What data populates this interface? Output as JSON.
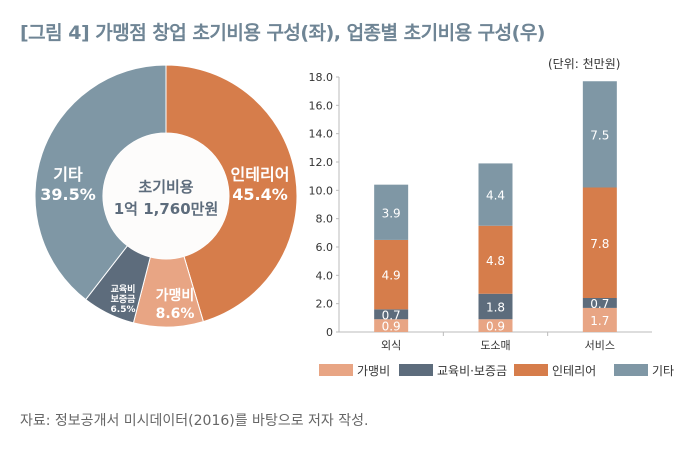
{
  "title": "[그림 4] 가맹점 창업 초기비용 구성(좌), 업종별 초기비용 구성(우)",
  "source": "자료: 정보공개서 미시데이터(2016)를 바탕으로 저자 작성.",
  "chart_data": [
    {
      "type": "pie",
      "donut": true,
      "center_label": [
        "초기비용",
        "1억 1,760만원"
      ],
      "slices": [
        {
          "name": "인테리어",
          "value": 45.4,
          "label": "45.4%",
          "color": "#d67d4b"
        },
        {
          "name": "가맹비",
          "value": 8.6,
          "label": "8.6%",
          "color": "#e8a584"
        },
        {
          "name": "교육비 보증금",
          "label_lines": [
            "교육비",
            "보증금"
          ],
          "value": 6.5,
          "label": "6.5%",
          "color": "#5d6c7c"
        },
        {
          "name": "기타",
          "value": 39.5,
          "label": "39.5%",
          "color": "#7f97a5"
        }
      ]
    },
    {
      "type": "bar",
      "stacked": true,
      "unit_label": "(단위: 천만원)",
      "categories": [
        "외식",
        "도소매",
        "서비스"
      ],
      "ylim": [
        0,
        18
      ],
      "yticks": [
        "0",
        "2.0",
        "4.0",
        "6.0",
        "8.0",
        "10.0",
        "12.0",
        "14.0",
        "16.0",
        "18.0"
      ],
      "legend_position": "bottom",
      "series": [
        {
          "name": "가맹비",
          "values": [
            0.9,
            0.9,
            1.7
          ],
          "color": "#e8a584"
        },
        {
          "name": "교육비·보증금",
          "values": [
            0.7,
            1.8,
            0.7
          ],
          "color": "#5d6c7c"
        },
        {
          "name": "인테리어",
          "values": [
            4.9,
            4.8,
            7.8
          ],
          "color": "#d67d4b"
        },
        {
          "name": "기타",
          "values": [
            3.9,
            4.4,
            7.5
          ],
          "color": "#7f97a5"
        }
      ]
    }
  ]
}
